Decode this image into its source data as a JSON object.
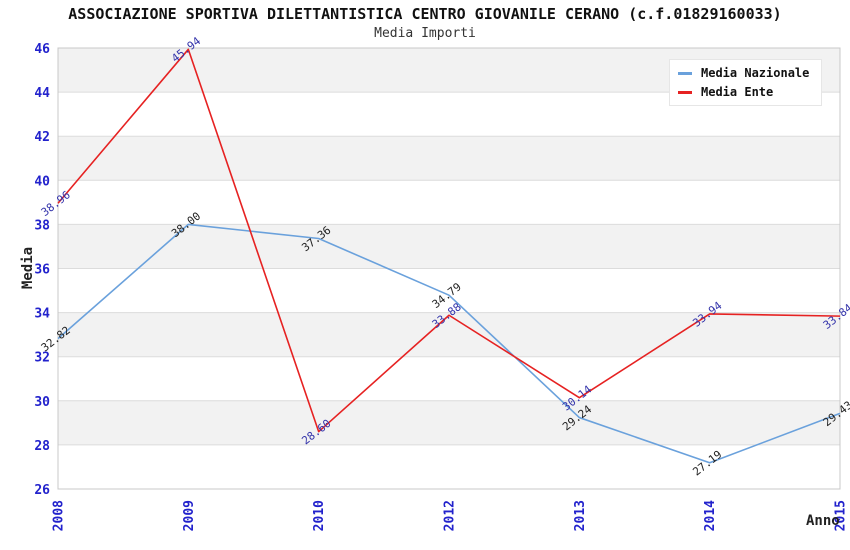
{
  "title": "ASSOCIAZIONE SPORTIVA DILETTANTISTICA CENTRO GIOVANILE CERANO (c.f.01829160033)",
  "subtitle": "Media Importi",
  "chart_data": {
    "type": "line",
    "title": "ASSOCIAZIONE SPORTIVA DILETTANTISTICA CENTRO GIOVANILE CERANO (c.f.01829160033)",
    "subtitle": "Media Importi",
    "xlabel": "Anno",
    "ylabel": "Media",
    "categories": [
      "2008",
      "2009",
      "2010",
      "2012",
      "2013",
      "2014",
      "2015"
    ],
    "y_ticks": [
      26,
      28,
      30,
      32,
      34,
      36,
      38,
      40,
      42,
      44,
      46
    ],
    "ylim": [
      26,
      46
    ],
    "grid": "horizontal gridlines with alternating shaded bands",
    "legend_position": "top-right",
    "series": [
      {
        "name": "Media Nazionale",
        "color": "#6aa1dc",
        "label_color": "#222222",
        "values": [
          32.82,
          38.0,
          37.36,
          34.79,
          29.24,
          27.19,
          29.43
        ]
      },
      {
        "name": "Media Ente",
        "color": "#e62222",
        "label_color": "#3333aa",
        "values": [
          38.96,
          45.94,
          28.6,
          33.88,
          30.14,
          33.94,
          33.84
        ]
      }
    ]
  },
  "colors": {
    "band": "#f2f2f2",
    "grid": "#dcdcdc",
    "border": "#c8c8c8",
    "tick_text": "#2222cc",
    "title_text": "#111111",
    "subtitle_text": "#333333"
  }
}
